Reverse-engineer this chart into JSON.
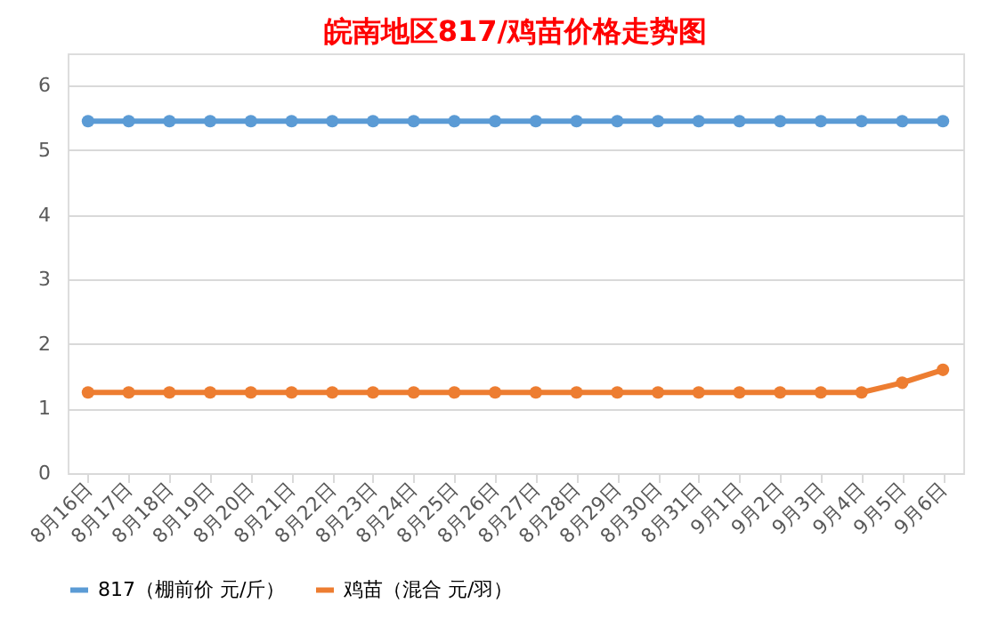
{
  "chart_data": {
    "type": "line",
    "title": "皖南地区817/鸡苗价格走势图",
    "categories": [
      "8月16日",
      "8月17日",
      "8月18日",
      "8月19日",
      "8月20日",
      "8月21日",
      "8月22日",
      "8月23日",
      "8月24日",
      "8月25日",
      "8月26日",
      "8月27日",
      "8月28日",
      "8月29日",
      "8月30日",
      "8月31日",
      "9月1日",
      "9月2日",
      "9月3日",
      "9月4日",
      "9月5日",
      "9月6日"
    ],
    "series": [
      {
        "name": "817（棚前价 元/斤）",
        "color": "#5b9bd5",
        "values": [
          5.45,
          5.45,
          5.45,
          5.45,
          5.45,
          5.45,
          5.45,
          5.45,
          5.45,
          5.45,
          5.45,
          5.45,
          5.45,
          5.45,
          5.45,
          5.45,
          5.45,
          5.45,
          5.45,
          5.45,
          5.45,
          5.45
        ]
      },
      {
        "name": "鸡苗（混合 元/羽）",
        "color": "#ed7d31",
        "values": [
          1.25,
          1.25,
          1.25,
          1.25,
          1.25,
          1.25,
          1.25,
          1.25,
          1.25,
          1.25,
          1.25,
          1.25,
          1.25,
          1.25,
          1.25,
          1.25,
          1.25,
          1.25,
          1.25,
          1.25,
          1.4,
          1.6
        ]
      }
    ],
    "ylim": [
      0,
      6.5
    ],
    "yticks": [
      0,
      1,
      2,
      3,
      4,
      5,
      6
    ],
    "grid": "y",
    "legend": "bottom",
    "marker": "circle",
    "line_style": "solid"
  }
}
